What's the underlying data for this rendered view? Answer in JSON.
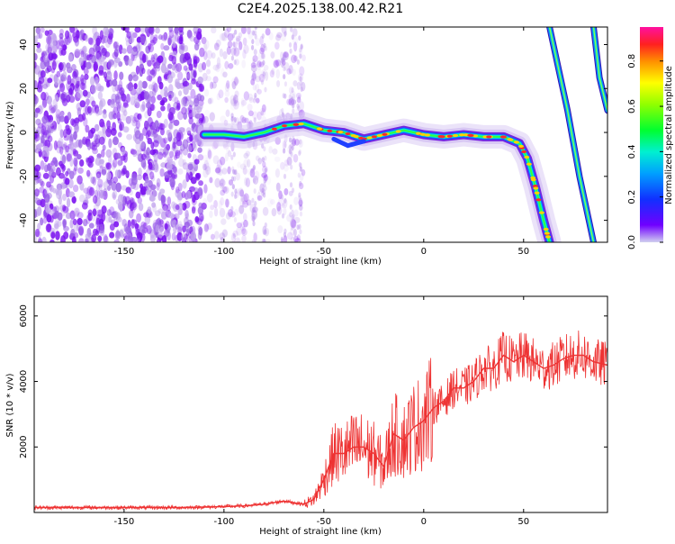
{
  "title": "C2E4.2025.138.00.42.R21",
  "chart_data": [
    {
      "type": "heatmap",
      "xlabel": "Height of straight line (km)",
      "ylabel": "Frequency (Hz)",
      "xlim": [
        -195,
        92
      ],
      "ylim": [
        -50,
        48
      ],
      "xticks": [
        -150,
        -100,
        -50,
        0,
        50
      ],
      "yticks": [
        -40,
        -20,
        0,
        20,
        40
      ],
      "colorbar": {
        "label": "Normalized spectral amplitude",
        "range": [
          0,
          0.95
        ],
        "ticks": [
          0.0,
          0.2,
          0.4,
          0.6,
          0.8
        ]
      },
      "main_trace": [
        {
          "x": -110,
          "y": -1
        },
        {
          "x": -100,
          "y": -1
        },
        {
          "x": -90,
          "y": -2
        },
        {
          "x": -80,
          "y": 0
        },
        {
          "x": -70,
          "y": 3
        },
        {
          "x": -60,
          "y": 4
        },
        {
          "x": -50,
          "y": 1
        },
        {
          "x": -40,
          "y": 0
        },
        {
          "x": -30,
          "y": -3
        },
        {
          "x": -20,
          "y": -1
        },
        {
          "x": -10,
          "y": 1
        },
        {
          "x": 0,
          "y": -1
        },
        {
          "x": 10,
          "y": -2
        },
        {
          "x": 20,
          "y": -1
        },
        {
          "x": 30,
          "y": -2
        },
        {
          "x": 40,
          "y": -2
        },
        {
          "x": 48,
          "y": -5
        },
        {
          "x": 52,
          "y": -12
        },
        {
          "x": 56,
          "y": -25
        },
        {
          "x": 60,
          "y": -40
        },
        {
          "x": 63,
          "y": -50
        }
      ],
      "side_traces": [
        [
          {
            "x": 63,
            "y": 48
          },
          {
            "x": 72,
            "y": 10
          },
          {
            "x": 78,
            "y": -20
          },
          {
            "x": 85,
            "y": -50
          }
        ],
        [
          {
            "x": 85,
            "y": 48
          },
          {
            "x": 88,
            "y": 25
          },
          {
            "x": 92,
            "y": 10
          }
        ]
      ]
    },
    {
      "type": "line",
      "xlabel": "Height of straight line (km)",
      "ylabel": "SNR (10 * v/v)",
      "xlim": [
        -195,
        92
      ],
      "ylim": [
        0,
        6600
      ],
      "xticks": [
        -150,
        -100,
        -50,
        0,
        50
      ],
      "yticks": [
        2000,
        4000,
        6000
      ],
      "color": "#ee3333",
      "series": [
        {
          "x": [
            -195,
            -180,
            -160,
            -140,
            -120,
            -100,
            -90,
            -80,
            -70,
            -60,
            -55,
            -50,
            -45,
            -40,
            -35,
            -30,
            -25,
            -20,
            -15,
            -10,
            -5,
            0,
            5,
            10,
            15,
            20,
            25,
            30,
            35,
            40,
            45,
            50,
            55,
            60,
            65,
            70,
            75,
            80,
            85,
            92
          ],
          "values": [
            150,
            150,
            150,
            150,
            150,
            180,
            200,
            250,
            350,
            250,
            400,
            1000,
            1800,
            1800,
            2000,
            2000,
            1800,
            1400,
            2400,
            2200,
            2600,
            2800,
            3200,
            3400,
            3800,
            3800,
            4000,
            4400,
            4400,
            4800,
            4600,
            4800,
            4600,
            4400,
            4500,
            4700,
            4800,
            4800,
            4600,
            4500
          ]
        }
      ]
    }
  ]
}
